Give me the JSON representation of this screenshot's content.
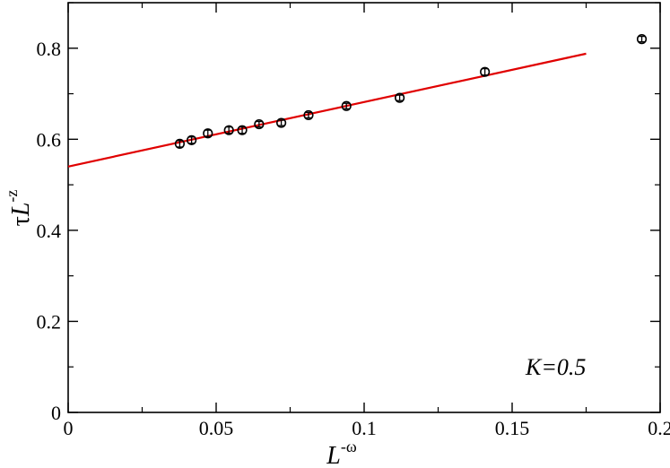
{
  "chart_data": {
    "type": "scatter",
    "title": "",
    "xlabel": {
      "base": "L",
      "sup": "-ω"
    },
    "ylabel": {
      "prefix": "τ",
      "base": "L",
      "sup": "-z"
    },
    "xlim": [
      0,
      0.2
    ],
    "ylim": [
      0,
      0.9
    ],
    "x_ticks": [
      0,
      0.05,
      0.1,
      0.15,
      0.2
    ],
    "x_tick_labels": [
      "0",
      "0.05",
      "0.1",
      "0.15",
      "0.2"
    ],
    "y_ticks": [
      0,
      0.2,
      0.4,
      0.6,
      0.8
    ],
    "y_tick_labels": [
      "0",
      "0.2",
      "0.4",
      "0.6",
      "0.8"
    ],
    "grid": false,
    "annotation": "K=0.5",
    "series": [
      {
        "marker": "open-circle",
        "color": "#000000",
        "x": [
          0.0377,
          0.0417,
          0.0472,
          0.0543,
          0.0588,
          0.0645,
          0.072,
          0.0812,
          0.094,
          0.112,
          0.1408,
          0.1938
        ],
        "y": [
          0.59,
          0.598,
          0.613,
          0.62,
          0.62,
          0.633,
          0.636,
          0.653,
          0.673,
          0.691,
          0.748,
          0.82
        ],
        "yerr": [
          0.007,
          0.007,
          0.007,
          0.007,
          0.007,
          0.006,
          0.006,
          0.006,
          0.006,
          0.006,
          0.007,
          0.006
        ]
      },
      {
        "type": "line",
        "color": "#e00000",
        "x": [
          0,
          0.175
        ],
        "y": [
          0.54,
          0.788
        ]
      }
    ]
  }
}
